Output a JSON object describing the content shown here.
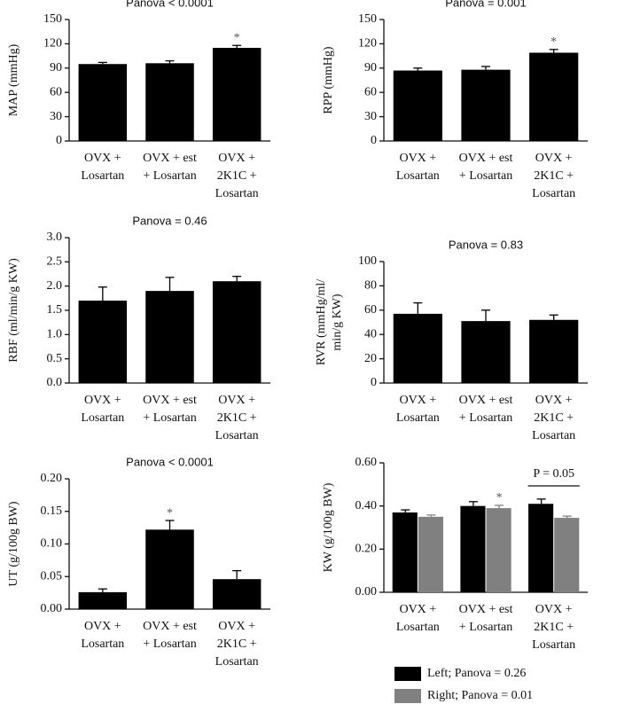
{
  "chart_data": [
    {
      "type": "bar",
      "title": "Panova < 0.0001",
      "ylabel": "MAP (mmHg)",
      "categories": [
        "OVX +\nLosartan",
        "OVX + est\n+ Losartan",
        "OVX +\n2K1C +\nLosartan"
      ],
      "values": [
        95,
        96,
        115
      ],
      "errors": [
        2,
        3,
        3
      ],
      "markers": [
        null,
        null,
        "*"
      ],
      "color": "#000000",
      "ylim": [
        0,
        150
      ],
      "yticks": [
        0,
        30,
        60,
        90,
        120,
        150
      ]
    },
    {
      "type": "bar",
      "title": "Panova = 0.001",
      "ylabel": "RPP (mmHg)",
      "categories": [
        "OVX +\nLosartan",
        "OVX + est\n+ Losartan",
        "OVX +\n2K1C +\nLosartan"
      ],
      "values": [
        87,
        88,
        109
      ],
      "errors": [
        3,
        4,
        4
      ],
      "markers": [
        null,
        null,
        "*"
      ],
      "color": "#000000",
      "ylim": [
        0,
        150
      ],
      "yticks": [
        0,
        30,
        60,
        90,
        120,
        150
      ]
    },
    {
      "type": "bar",
      "title": "Panova = 0.46",
      "ylabel": "RBF (ml/min/g KW)",
      "categories": [
        "OVX +\nLosartan",
        "OVX + est\n+ Losartan",
        "OVX +\n2K1C +\nLosartan"
      ],
      "values": [
        1.7,
        1.9,
        2.1
      ],
      "errors": [
        0.28,
        0.28,
        0.1
      ],
      "color": "#000000",
      "ylim": [
        0,
        3
      ],
      "yticks": [
        {
          "value": 0,
          "label": "0.0"
        },
        0.5,
        {
          "value": 1,
          "label": "1.0"
        },
        1.5,
        {
          "value": 2,
          "label": "2.0"
        },
        2.5,
        {
          "value": 3,
          "label": "3.0"
        }
      ]
    },
    {
      "type": "bar",
      "title": "Panova = 0.83",
      "ylabel": "RVR (mmHg/ml/\nmin/g KW)",
      "categories": [
        "OVX +\nLosartan",
        "OVX + est\n+ Losartan",
        "OVX +\n2K1C +\nLosartan"
      ],
      "values": [
        57,
        51,
        52
      ],
      "errors": [
        9,
        9,
        4
      ],
      "color": "#000000",
      "ylim": [
        0,
        100
      ],
      "yticks": [
        0,
        20,
        40,
        60,
        80,
        100
      ]
    },
    {
      "type": "bar",
      "title": "Panova < 0.0001",
      "ylabel": "UT (g/100g BW)",
      "categories": [
        "OVX +\nLosartan",
        "OVX + est\n+ Losartan",
        "OVX +\n2K1C +\nLosartan"
      ],
      "values": [
        0.026,
        0.122,
        0.046
      ],
      "errors": [
        0.005,
        0.014,
        0.013
      ],
      "markers": [
        null,
        "*",
        null
      ],
      "color": "#000000",
      "ylim": [
        0,
        0.2
      ],
      "yticks": [
        {
          "value": 0,
          "label": "0.00"
        },
        0.05,
        {
          "value": 0.1,
          "label": "0.10"
        },
        0.15,
        {
          "value": 0.2,
          "label": "0.20"
        }
      ]
    },
    {
      "type": "bar",
      "ylabel": "KW (g/100g BW)",
      "categories": [
        "OVX +\nLosartan",
        "OVX + est\n+ Losartan",
        "OVX +\n2K1C +\nLosartan"
      ],
      "series": [
        {
          "name": "Left; Panova = 0.26",
          "color": "#000000",
          "values": [
            0.37,
            0.4,
            0.41
          ],
          "errors": [
            0.012,
            0.02,
            0.022
          ]
        },
        {
          "name": "Right; Panova = 0.01",
          "color": "#808080",
          "values": [
            0.35,
            0.39,
            0.345
          ],
          "errors": [
            0.008,
            0.013,
            0.008
          ],
          "markers": [
            null,
            "*",
            null
          ]
        }
      ],
      "bracket": {
        "label": "P = 0.05",
        "category": "OVX +\n2K1C +\nLosartan"
      },
      "ylim": [
        0,
        0.6
      ],
      "yticks": [
        {
          "value": 0,
          "label": "0.00"
        },
        {
          "value": 0.2,
          "label": "0.20"
        },
        {
          "value": 0.4,
          "label": "0.40"
        },
        {
          "value": 0.6,
          "label": "0.60"
        }
      ]
    }
  ]
}
